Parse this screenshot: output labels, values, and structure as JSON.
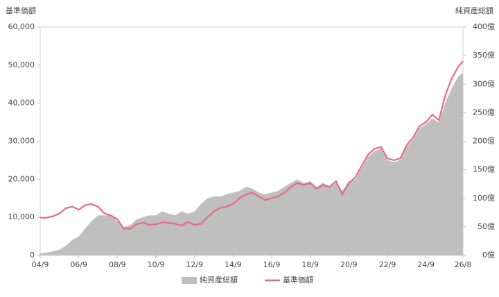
{
  "chart_data": {
    "type": "line",
    "y_label": "基準価額",
    "y2_label": "純資産総額",
    "x": [
      0,
      4,
      8,
      12,
      16,
      20,
      24,
      28,
      32,
      36,
      40,
      44,
      48,
      52,
      56,
      60,
      64,
      68,
      72,
      76,
      80,
      84,
      88,
      92,
      96,
      100,
      104,
      108,
      112,
      116,
      120,
      124,
      128,
      132,
      136,
      140,
      144,
      148,
      152,
      156,
      160,
      164,
      168,
      172,
      176,
      180,
      184,
      188,
      192,
      196,
      200,
      204,
      208,
      212,
      216,
      220,
      224,
      228,
      232,
      236,
      240,
      244,
      248,
      252,
      256,
      260,
      263
    ],
    "xlim": [
      0,
      263
    ],
    "xticks": [
      {
        "value": 0,
        "label": "04/9"
      },
      {
        "value": 24,
        "label": "06/9"
      },
      {
        "value": 48,
        "label": "08/9"
      },
      {
        "value": 72,
        "label": "10/9"
      },
      {
        "value": 96,
        "label": "12/9"
      },
      {
        "value": 120,
        "label": "14/9"
      },
      {
        "value": 144,
        "label": "16/9"
      },
      {
        "value": 168,
        "label": "18/9"
      },
      {
        "value": 192,
        "label": "20/9"
      },
      {
        "value": 216,
        "label": "22/9"
      },
      {
        "value": 240,
        "label": "24/9"
      },
      {
        "value": 263,
        "label": "26/8"
      }
    ],
    "ylim": [
      0,
      60000
    ],
    "yticks": [
      0,
      {
        "value": 10000,
        "label": "10,000"
      },
      {
        "value": 20000,
        "label": "20,000"
      },
      {
        "value": 30000,
        "label": "30,000"
      },
      {
        "value": 40000,
        "label": "40,000"
      },
      {
        "value": 50000,
        "label": "50,000"
      },
      {
        "value": 60000,
        "label": "60,000"
      }
    ],
    "y2lim": [
      0,
      400
    ],
    "y2ticks": [
      {
        "value": 0,
        "label": "0億"
      },
      {
        "value": 50,
        "label": "50億"
      },
      {
        "value": 100,
        "label": "100億"
      },
      {
        "value": 150,
        "label": "150億"
      },
      {
        "value": 200,
        "label": "200億"
      },
      {
        "value": 250,
        "label": "250億"
      },
      {
        "value": 300,
        "label": "300億"
      },
      {
        "value": 350,
        "label": "350億"
      },
      {
        "value": 400,
        "label": "400億"
      }
    ],
    "legend": "bottom",
    "series": [
      {
        "name": "純資産総額",
        "type": "area",
        "axis": "y2",
        "color": "#bfbfbf",
        "values": [
          3,
          5,
          7,
          10,
          17,
          27,
          33,
          47,
          60,
          70,
          70,
          70,
          60,
          50,
          53,
          63,
          67,
          70,
          70,
          77,
          73,
          70,
          77,
          73,
          77,
          90,
          100,
          103,
          103,
          107,
          110,
          113,
          120,
          117,
          110,
          107,
          110,
          113,
          120,
          127,
          133,
          127,
          130,
          120,
          127,
          120,
          127,
          113,
          130,
          133,
          153,
          173,
          183,
          187,
          167,
          163,
          167,
          190,
          203,
          223,
          230,
          240,
          233,
          267,
          293,
          313,
          320
        ]
      },
      {
        "name": "基準価額",
        "type": "line",
        "color": "#e8688a",
        "values": [
          9900,
          9900,
          10300,
          11000,
          12400,
          12800,
          12000,
          13200,
          13500,
          12800,
          11000,
          10500,
          9500,
          7000,
          7000,
          8200,
          8600,
          8000,
          8200,
          8700,
          8500,
          8300,
          7800,
          8800,
          8000,
          8300,
          10000,
          11500,
          12500,
          12800,
          13500,
          15000,
          16000,
          16500,
          15500,
          14500,
          15000,
          15500,
          16500,
          18000,
          19000,
          18500,
          19000,
          17500,
          18500,
          18000,
          19500,
          16000,
          19000,
          20500,
          23500,
          26500,
          28000,
          28500,
          25500,
          25000,
          25500,
          29000,
          31000,
          34000,
          35000,
          37000,
          35500,
          42000,
          46500,
          49500,
          51000
        ]
      }
    ]
  }
}
